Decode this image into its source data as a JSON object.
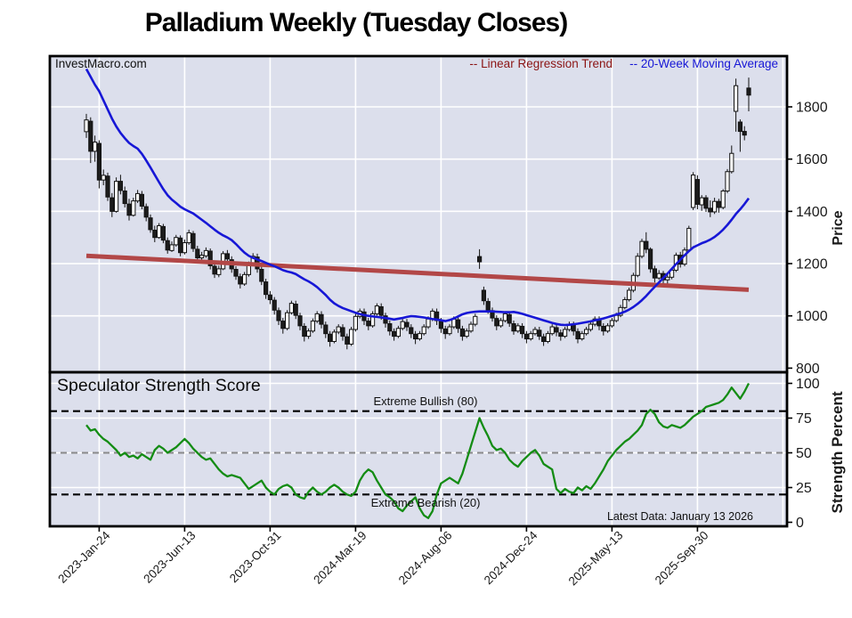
{
  "title": "Palladium Weekly (Tuesday Closes)",
  "watermark": "InvestMacro.com",
  "legend": {
    "regression_label": "-- Linear Regression Trend",
    "ma_label": "-- 20-Week Moving Average"
  },
  "footer": {
    "latest_data": "Latest Data: January 13 2026"
  },
  "price_panel": {
    "axis_label": "Price"
  },
  "strength_panel": {
    "title": "Speculator Strength Score",
    "axis_label": "Strength Percent",
    "bullish_label": "Extreme Bullish (80)",
    "bearish_label": "Extreme Bearish (20)"
  },
  "colors": {
    "plot_bg": "#dcdfec",
    "grid": "#ffffff",
    "border": "#000000",
    "candle_up_fill": "#ffffff",
    "candle_down_fill": "#1c1c1c",
    "candle_stroke": "#111111",
    "ma_line": "#1717d6",
    "regression_line": "#b24747",
    "strength_line": "#148c14",
    "dashed_black": "#000000",
    "dashed_gray": "#8a8a8a",
    "text": "#1a1a1a"
  },
  "chart_data": [
    {
      "type": "candlestick",
      "title": "Palladium Weekly (Tuesday Closes)",
      "ylabel": "Price",
      "ylim": [
        800,
        1950
      ],
      "y_ticks": [
        1800,
        1600,
        1400,
        1200,
        1000,
        800
      ],
      "y_gridlines": [
        1000,
        1200,
        1400,
        1600,
        1800
      ],
      "x_tick_labels": [
        "2023-Jan-24",
        "2023-Jun-13",
        "2023-Oct-31",
        "2024-Mar-19",
        "2024-Aug-06",
        "2024-Dec-24",
        "2025-May-13",
        "2025-Sep-30"
      ],
      "x_tick_week_indices": [
        3,
        23,
        43,
        63,
        83,
        103,
        123,
        143
      ],
      "grid_week_indices": [
        3,
        23,
        43,
        63,
        83,
        103,
        123,
        143,
        163
      ],
      "week_count": 156,
      "series_names": {
        "regression": "Linear Regression Trend",
        "ma": "20-Week Moving Average"
      },
      "regression_trend": {
        "start_value": 1230,
        "end_value": 1100
      },
      "candles_ohlc": [
        [
          1705,
          1773,
          1681,
          1750
        ],
        [
          1745,
          1760,
          1585,
          1630
        ],
        [
          1630,
          1690,
          1590,
          1665
        ],
        [
          1660,
          1672,
          1488,
          1520
        ],
        [
          1520,
          1560,
          1500,
          1538
        ],
        [
          1535,
          1548,
          1440,
          1455
        ],
        [
          1452,
          1470,
          1378,
          1400
        ],
        [
          1400,
          1530,
          1395,
          1515
        ],
        [
          1515,
          1540,
          1465,
          1480
        ],
        [
          1478,
          1495,
          1415,
          1430
        ],
        [
          1428,
          1448,
          1365,
          1385
        ],
        [
          1385,
          1452,
          1380,
          1440
        ],
        [
          1440,
          1482,
          1432,
          1468
        ],
        [
          1465,
          1478,
          1408,
          1420
        ],
        [
          1418,
          1430,
          1362,
          1378
        ],
        [
          1375,
          1388,
          1318,
          1330
        ],
        [
          1328,
          1345,
          1282,
          1300
        ],
        [
          1300,
          1355,
          1295,
          1345
        ],
        [
          1342,
          1352,
          1278,
          1290
        ],
        [
          1288,
          1300,
          1238,
          1252
        ],
        [
          1250,
          1285,
          1245,
          1272
        ],
        [
          1272,
          1310,
          1265,
          1300
        ],
        [
          1298,
          1308,
          1228,
          1242
        ],
        [
          1242,
          1292,
          1235,
          1280
        ],
        [
          1280,
          1330,
          1272,
          1318
        ],
        [
          1315,
          1325,
          1245,
          1258
        ],
        [
          1255,
          1268,
          1208,
          1222
        ],
        [
          1222,
          1245,
          1212,
          1232
        ],
        [
          1230,
          1262,
          1222,
          1250
        ],
        [
          1248,
          1258,
          1178,
          1192
        ],
        [
          1190,
          1205,
          1145,
          1160
        ],
        [
          1158,
          1192,
          1148,
          1180
        ],
        [
          1180,
          1248,
          1175,
          1238
        ],
        [
          1238,
          1252,
          1205,
          1218
        ],
        [
          1215,
          1228,
          1165,
          1180
        ],
        [
          1178,
          1190,
          1138,
          1152
        ],
        [
          1150,
          1162,
          1105,
          1122
        ],
        [
          1122,
          1168,
          1115,
          1158
        ],
        [
          1158,
          1208,
          1150,
          1198
        ],
        [
          1198,
          1240,
          1190,
          1228
        ],
        [
          1225,
          1238,
          1165,
          1180
        ],
        [
          1178,
          1190,
          1118,
          1132
        ],
        [
          1130,
          1142,
          1065,
          1082
        ],
        [
          1080,
          1095,
          1045,
          1062
        ],
        [
          1060,
          1072,
          1005,
          1022
        ],
        [
          1020,
          1032,
          965,
          982
        ],
        [
          980,
          992,
          932,
          952
        ],
        [
          952,
          1022,
          945,
          1012
        ],
        [
          1012,
          1058,
          1005,
          1048
        ],
        [
          1045,
          1058,
          988,
          1002
        ],
        [
          1000,
          1012,
          945,
          962
        ],
        [
          960,
          972,
          902,
          922
        ],
        [
          922,
          952,
          912,
          942
        ],
        [
          942,
          990,
          935,
          980
        ],
        [
          980,
          1018,
          972,
          1008
        ],
        [
          1005,
          1018,
          952,
          968
        ],
        [
          965,
          978,
          915,
          932
        ],
        [
          930,
          942,
          882,
          902
        ],
        [
          902,
          948,
          895,
          938
        ],
        [
          938,
          968,
          930,
          958
        ],
        [
          955,
          968,
          905,
          922
        ],
        [
          920,
          932,
          872,
          892
        ],
        [
          892,
          958,
          885,
          948
        ],
        [
          948,
          1008,
          940,
          998
        ],
        [
          998,
          1028,
          990,
          1018
        ],
        [
          1015,
          1028,
          965,
          982
        ],
        [
          980,
          992,
          945,
          962
        ],
        [
          962,
          1018,
          955,
          1008
        ],
        [
          1008,
          1048,
          1000,
          1038
        ],
        [
          1035,
          1048,
          985,
          1002
        ],
        [
          1000,
          1012,
          955,
          972
        ],
        [
          970,
          982,
          925,
          942
        ],
        [
          940,
          952,
          905,
          922
        ],
        [
          922,
          962,
          915,
          952
        ],
        [
          952,
          988,
          945,
          978
        ],
        [
          975,
          988,
          942,
          958
        ],
        [
          955,
          968,
          915,
          932
        ],
        [
          930,
          942,
          892,
          912
        ],
        [
          912,
          942,
          905,
          932
        ],
        [
          932,
          968,
          925,
          958
        ],
        [
          958,
          998,
          950,
          988
        ],
        [
          988,
          1028,
          980,
          1018
        ],
        [
          1015,
          1028,
          965,
          982
        ],
        [
          980,
          992,
          935,
          952
        ],
        [
          950,
          962,
          912,
          932
        ],
        [
          932,
          968,
          925,
          958
        ],
        [
          958,
          998,
          950,
          988
        ],
        [
          985,
          998,
          935,
          952
        ],
        [
          950,
          962,
          905,
          922
        ],
        [
          922,
          952,
          915,
          942
        ],
        [
          942,
          978,
          935,
          968
        ],
        [
          968,
          1008,
          960,
          998
        ],
        [
          1227,
          1255,
          1180,
          1207
        ],
        [
          1098,
          1112,
          1042,
          1058
        ],
        [
          1055,
          1068,
          1008,
          1022
        ],
        [
          1020,
          1032,
          978,
          992
        ],
        [
          990,
          1002,
          945,
          962
        ],
        [
          962,
          992,
          955,
          982
        ],
        [
          982,
          1018,
          975,
          1008
        ],
        [
          1005,
          1018,
          958,
          972
        ],
        [
          970,
          982,
          928,
          942
        ],
        [
          942,
          972,
          935,
          962
        ],
        [
          960,
          972,
          915,
          932
        ],
        [
          930,
          942,
          895,
          912
        ],
        [
          912,
          942,
          905,
          932
        ],
        [
          932,
          958,
          925,
          948
        ],
        [
          945,
          958,
          908,
          922
        ],
        [
          920,
          932,
          885,
          902
        ],
        [
          902,
          942,
          895,
          932
        ],
        [
          932,
          968,
          925,
          958
        ],
        [
          955,
          968,
          922,
          938
        ],
        [
          935,
          948,
          905,
          922
        ],
        [
          922,
          958,
          915,
          948
        ],
        [
          948,
          978,
          940,
          968
        ],
        [
          965,
          978,
          925,
          942
        ],
        [
          940,
          952,
          895,
          912
        ],
        [
          912,
          942,
          905,
          932
        ],
        [
          932,
          958,
          925,
          948
        ],
        [
          948,
          978,
          940,
          968
        ],
        [
          968,
          998,
          960,
          988
        ],
        [
          985,
          998,
          945,
          962
        ],
        [
          960,
          972,
          925,
          942
        ],
        [
          942,
          972,
          935,
          962
        ],
        [
          962,
          992,
          955,
          982
        ],
        [
          982,
          1012,
          975,
          1002
        ],
        [
          1002,
          1042,
          995,
          1032
        ],
        [
          1032,
          1072,
          1025,
          1062
        ],
        [
          1062,
          1108,
          1055,
          1098
        ],
        [
          1098,
          1165,
          1090,
          1155
        ],
        [
          1155,
          1240,
          1148,
          1228
        ],
        [
          1228,
          1295,
          1220,
          1285
        ],
        [
          1285,
          1320,
          1240,
          1255
        ],
        [
          1255,
          1262,
          1165,
          1180
        ],
        [
          1180,
          1192,
          1128,
          1145
        ],
        [
          1145,
          1175,
          1138,
          1162
        ],
        [
          1162,
          1172,
          1122,
          1138
        ],
        [
          1138,
          1158,
          1112,
          1148
        ],
        [
          1148,
          1185,
          1140,
          1175
        ],
        [
          1175,
          1242,
          1168,
          1232
        ],
        [
          1232,
          1245,
          1185,
          1198
        ],
        [
          1198,
          1262,
          1190,
          1252
        ],
        [
          1252,
          1345,
          1245,
          1335
        ],
        [
          1415,
          1550,
          1405,
          1539
        ],
        [
          1522,
          1538,
          1408,
          1427
        ],
        [
          1425,
          1462,
          1402,
          1452
        ],
        [
          1452,
          1462,
          1398,
          1412
        ],
        [
          1412,
          1442,
          1378,
          1398
        ],
        [
          1398,
          1452,
          1390,
          1438
        ],
        [
          1438,
          1448,
          1395,
          1415
        ],
        [
          1415,
          1485,
          1408,
          1478
        ],
        [
          1478,
          1562,
          1470,
          1552
        ],
        [
          1552,
          1652,
          1545,
          1622
        ],
        [
          1783,
          1908,
          1705,
          1881
        ],
        [
          1742,
          1752,
          1628,
          1706
        ],
        [
          1706,
          1726,
          1672,
          1692
        ],
        [
          1872,
          1912,
          1783,
          1845
        ]
      ],
      "ma20": [
        1945,
        1915,
        1885,
        1860,
        1825,
        1790,
        1755,
        1725,
        1700,
        1680,
        1662,
        1650,
        1640,
        1620,
        1595,
        1568,
        1540,
        1512,
        1485,
        1462,
        1445,
        1432,
        1418,
        1408,
        1400,
        1392,
        1380,
        1368,
        1356,
        1343,
        1330,
        1318,
        1308,
        1300,
        1290,
        1275,
        1258,
        1242,
        1230,
        1222,
        1216,
        1210,
        1203,
        1196,
        1190,
        1183,
        1175,
        1170,
        1166,
        1160,
        1150,
        1140,
        1132,
        1122,
        1110,
        1095,
        1080,
        1062,
        1048,
        1038,
        1030,
        1024,
        1018,
        1012,
        1007,
        1003,
        1000,
        998,
        996,
        994,
        992,
        989,
        986,
        989,
        992,
        996,
        999,
        998,
        996,
        994,
        991,
        988,
        986,
        983,
        980,
        984,
        990,
        998,
        1006,
        1011,
        1014,
        1016,
        1017,
        1017,
        1017,
        1017,
        1016,
        1015,
        1014,
        1014,
        1015,
        1012,
        1008,
        1003,
        998,
        993,
        988,
        983,
        978,
        973,
        969,
        966,
        965,
        966,
        968,
        970,
        973,
        976,
        979,
        983,
        986,
        990,
        995,
        1000,
        1005,
        1010,
        1016,
        1024,
        1034,
        1046,
        1060,
        1076,
        1094,
        1111,
        1128,
        1145,
        1162,
        1180,
        1198,
        1215,
        1232,
        1248,
        1262,
        1270,
        1278,
        1284,
        1292,
        1302,
        1315,
        1330,
        1348,
        1368,
        1390,
        1408,
        1428,
        1450
      ]
    },
    {
      "type": "line",
      "title": "Speculator Strength Score",
      "ylabel": "Strength Percent",
      "ylim": [
        0,
        100
      ],
      "y_ticks": [
        100,
        75,
        50,
        25,
        0
      ],
      "y_gridlines": [
        25,
        50,
        75,
        100
      ],
      "reference_lines": {
        "extreme_bullish": 80,
        "midline": 50,
        "extreme_bearish": 20
      },
      "values": [
        70,
        66,
        67,
        63,
        60,
        58,
        55,
        52,
        48,
        50,
        47,
        48,
        46,
        49,
        47,
        45,
        52,
        55,
        53,
        50,
        52,
        54,
        57,
        60,
        57,
        53,
        50,
        47,
        45,
        46,
        42,
        38,
        35,
        33,
        34,
        33,
        32,
        28,
        24,
        26,
        28,
        30,
        25,
        22,
        20,
        24,
        26,
        27,
        25,
        20,
        18,
        17,
        22,
        25,
        22,
        20,
        22,
        25,
        27,
        25,
        22,
        20,
        19,
        22,
        30,
        35,
        38,
        36,
        30,
        25,
        20,
        18,
        15,
        10,
        8,
        12,
        15,
        18,
        10,
        5,
        3,
        8,
        20,
        28,
        30,
        32,
        30,
        28,
        35,
        45,
        55,
        65,
        75,
        68,
        62,
        55,
        52,
        53,
        50,
        45,
        42,
        40,
        44,
        47,
        50,
        52,
        48,
        42,
        40,
        38,
        24,
        21,
        24,
        22,
        21,
        25,
        23,
        26,
        24,
        28,
        33,
        38,
        44,
        48,
        52,
        55,
        58,
        60,
        63,
        66,
        70,
        78,
        81,
        78,
        72,
        69,
        68,
        70,
        69,
        68,
        70,
        73,
        76,
        78,
        80,
        83,
        84,
        85,
        86,
        88,
        92,
        97,
        93,
        89,
        94,
        100
      ]
    }
  ]
}
